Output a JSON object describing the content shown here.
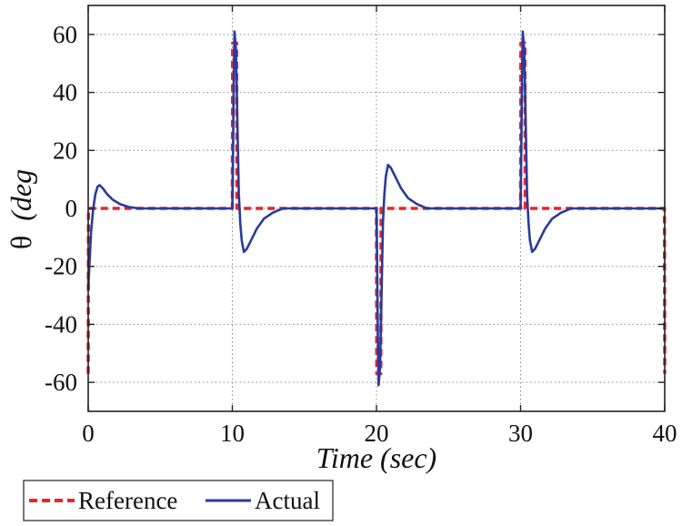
{
  "chart_data": {
    "type": "line",
    "title": "",
    "xlabel": "Time (sec)",
    "ylabel_symbol": "θ",
    "ylabel_unit": "(deg",
    "xlim": [
      0,
      40
    ],
    "ylim": [
      -70,
      70
    ],
    "xticks": [
      0,
      10,
      20,
      30,
      40
    ],
    "yticks": [
      -60,
      -40,
      -20,
      0,
      20,
      40,
      60
    ],
    "grid": true,
    "legend_position": "bottom-left",
    "series": [
      {
        "name": "Reference",
        "color": "#e8262a",
        "style": "dashed",
        "x": [
          0,
          0.02,
          10,
          10.02,
          10.3,
          10.32,
          20,
          20.02,
          20.3,
          20.32,
          30,
          30.02,
          30.3,
          30.32,
          39.98,
          40
        ],
        "y": [
          -57,
          0,
          0,
          57,
          57,
          0,
          0,
          -57,
          -57,
          0,
          0,
          57,
          57,
          0,
          0,
          -57
        ]
      },
      {
        "name": "Actual",
        "color": "#2b3a9b",
        "style": "solid",
        "x": [
          0,
          0.1,
          0.2,
          0.35,
          0.5,
          0.65,
          0.8,
          1.0,
          1.3,
          1.7,
          2.2,
          2.8,
          3.5,
          10,
          10.05,
          10.1,
          10.15,
          10.25,
          10.35,
          10.45,
          10.55,
          10.65,
          10.8,
          11.0,
          11.3,
          11.7,
          12.2,
          12.8,
          13.5,
          20,
          20.05,
          20.1,
          20.15,
          20.25,
          20.35,
          20.45,
          20.55,
          20.65,
          20.8,
          21.0,
          21.3,
          21.7,
          22.2,
          22.8,
          23.5,
          30,
          30.05,
          30.1,
          30.15,
          30.25,
          30.35,
          30.45,
          30.55,
          30.65,
          30.8,
          31.0,
          31.3,
          31.7,
          32.2,
          32.8,
          33.5,
          40
        ],
        "y": [
          -28,
          -18,
          -8,
          0,
          5,
          7.5,
          8,
          7,
          5,
          3,
          1.5,
          0.5,
          0,
          0,
          20,
          45,
          61,
          55,
          30,
          5,
          -5,
          -11,
          -15,
          -14,
          -11,
          -7,
          -3.5,
          -1.5,
          0,
          0,
          -20,
          -45,
          -61,
          -55,
          -30,
          -5,
          5,
          11,
          15,
          14,
          11,
          7,
          3.5,
          1.5,
          0,
          0,
          20,
          45,
          61,
          55,
          30,
          5,
          -5,
          -11,
          -15,
          -14,
          -11,
          -7,
          -3.5,
          -1.5,
          0,
          0
        ]
      }
    ]
  }
}
